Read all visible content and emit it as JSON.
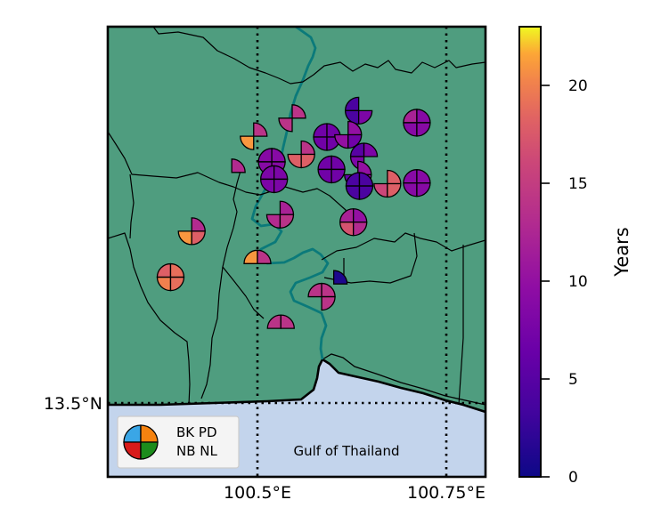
{
  "map": {
    "lat_label": "13.5°N",
    "lon_labels": [
      "100.5°E",
      "100.75°E"
    ],
    "sea_label": "Gulf of Thailand",
    "land_color": "#4f9d7f",
    "sea_color": "#c3d4ec",
    "river_color": "#0b7a7a"
  },
  "legend": {
    "line1": "BK PD",
    "line2": "NB NL",
    "quadrant_colors": [
      "#3aa6e6",
      "#f5820f",
      "#d81b1b",
      "#1c8c1c"
    ]
  },
  "colorbar": {
    "label": "Years",
    "min": 0,
    "max": 23,
    "ticks": [
      "0",
      "5",
      "10",
      "15",
      "20"
    ],
    "tick_values": [
      0,
      5,
      10,
      15,
      20
    ]
  },
  "stations": [
    {
      "lon": 100.546,
      "lat": 13.878,
      "q": [
        null,
        14,
        14,
        null
      ]
    },
    {
      "lon": 100.495,
      "lat": 13.854,
      "q": [
        null,
        14,
        21,
        null
      ]
    },
    {
      "lon": 100.634,
      "lat": 13.888,
      "q": [
        4,
        null,
        4,
        8
      ]
    },
    {
      "lon": 100.711,
      "lat": 13.872,
      "q": [
        12,
        9,
        9,
        9
      ]
    },
    {
      "lon": 100.592,
      "lat": 13.853,
      "q": [
        7,
        7,
        7,
        7
      ]
    },
    {
      "lon": 100.62,
      "lat": 13.856,
      "q": [
        null,
        10,
        10,
        7
      ]
    },
    {
      "lon": 100.519,
      "lat": 13.82,
      "q": [
        9,
        9,
        9,
        9
      ]
    },
    {
      "lon": 100.558,
      "lat": 13.83,
      "q": [
        null,
        14,
        18,
        18
      ]
    },
    {
      "lon": 100.641,
      "lat": 13.827,
      "q": [
        5,
        8,
        8,
        null
      ]
    },
    {
      "lon": 100.598,
      "lat": 13.81,
      "q": [
        7,
        7,
        7,
        7
      ]
    },
    {
      "lon": 100.466,
      "lat": 13.806,
      "q": [
        null,
        13,
        null,
        null
      ]
    },
    {
      "lon": 100.522,
      "lat": 13.797,
      "q": [
        8,
        8,
        8,
        8
      ]
    },
    {
      "lon": 100.633,
      "lat": 13.803,
      "q": [
        null,
        10,
        6,
        10
      ]
    },
    {
      "lon": 100.635,
      "lat": 13.788,
      "q": [
        4,
        4,
        4,
        4
      ]
    },
    {
      "lon": 100.672,
      "lat": 13.791,
      "q": [
        null,
        18,
        16,
        18
      ]
    },
    {
      "lon": 100.711,
      "lat": 13.792,
      "q": [
        9,
        9,
        9,
        9
      ]
    },
    {
      "lon": 100.53,
      "lat": 13.75,
      "q": [
        null,
        12,
        13,
        14
      ]
    },
    {
      "lon": 100.627,
      "lat": 13.74,
      "q": [
        12,
        10,
        17,
        13
      ]
    },
    {
      "lon": 100.413,
      "lat": 13.728,
      "q": [
        null,
        13,
        21,
        18
      ]
    },
    {
      "lon": 100.5,
      "lat": 13.685,
      "q": [
        21,
        14,
        null,
        null
      ]
    },
    {
      "lon": 100.385,
      "lat": 13.667,
      "q": [
        18,
        19,
        20,
        19
      ]
    },
    {
      "lon": 100.601,
      "lat": 13.658,
      "q": [
        null,
        1,
        null,
        null
      ]
    },
    {
      "lon": 100.585,
      "lat": 13.641,
      "q": [
        14,
        14,
        null,
        14
      ]
    },
    {
      "lon": 100.531,
      "lat": 13.599,
      "q": [
        14,
        14,
        null,
        null
      ]
    }
  ]
}
